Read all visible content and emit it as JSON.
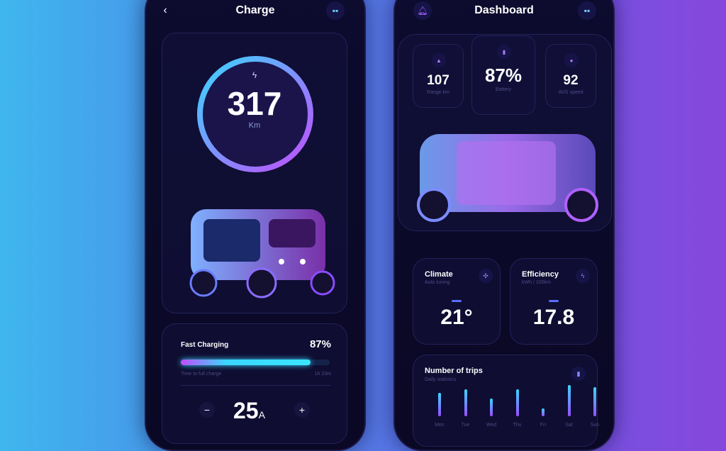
{
  "charge": {
    "title": "Charge",
    "back_icon": "chevron-left-icon",
    "menu_icon": "grid-icon",
    "range_value": "317",
    "range_unit": "Km",
    "bolt_icon": "lightning-icon",
    "fast_charging_label": "Fast Charging",
    "fast_charging_percent": "87%",
    "progress": 0.87,
    "time_label": "Time to full charge",
    "time_value": "1h 23m",
    "current_value": "25",
    "current_unit": "A",
    "minus": "−",
    "plus": "+"
  },
  "dashboard": {
    "title": "Dashboard",
    "bell_icon": "bell-icon",
    "menu_icon": "grid-icon",
    "stats": [
      {
        "value": "107",
        "label": "Range km",
        "icon": "navigation-arrow-icon"
      },
      {
        "value": "87%",
        "label": "Battery",
        "icon": "battery-icon"
      },
      {
        "value": "92",
        "label": "AVG speed",
        "icon": "speed-dot-icon"
      }
    ],
    "climate": {
      "title": "Climate",
      "subtitle": "Auto tuning",
      "value": "21°",
      "icon": "fan-icon"
    },
    "efficiency": {
      "title": "Efficiency",
      "subtitle": "kWh / 100km",
      "value": "17.8",
      "icon": "lightning-icon"
    },
    "trips": {
      "title": "Number of trips",
      "subtitle": "Daily statistics",
      "icon": "bar-chart-icon"
    }
  },
  "chart_data": {
    "type": "bar",
    "title": "Number of trips",
    "categories": [
      "Mon",
      "Tue",
      "Wed",
      "Thu",
      "Fri",
      "Sat",
      "Sun"
    ],
    "values": [
      6,
      7,
      4.5,
      7,
      2,
      8,
      7.5
    ]
  },
  "colors": {
    "cyan": "#3ad6ff",
    "purple": "#b44dff",
    "bg": "#0b0926"
  }
}
